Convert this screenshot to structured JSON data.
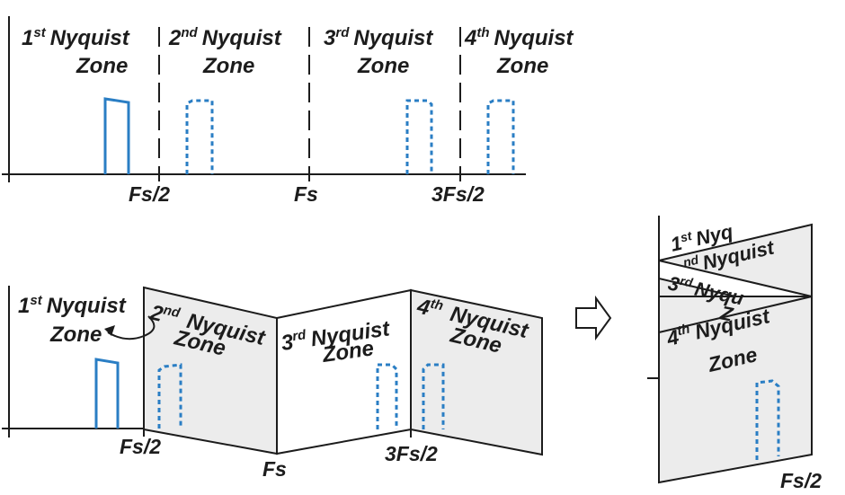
{
  "top_panel": {
    "zones": [
      {
        "sup_num": "1",
        "sup": "st",
        "word": "Nyquist",
        "line2": "Zone"
      },
      {
        "sup_num": "2",
        "sup": "nd",
        "word": "Nyquist",
        "line2": "Zone"
      },
      {
        "sup_num": "3",
        "sup": "rd",
        "word": "Nyquist",
        "line2": "Zone"
      },
      {
        "sup_num": "4",
        "sup": "th",
        "word": "Nyquist",
        "line2": "Zone"
      }
    ],
    "ticks": [
      "Fs/2",
      "Fs",
      "3Fs/2"
    ]
  },
  "bottom_panel": {
    "zones": [
      {
        "sup_num": "1",
        "sup": "st",
        "word": "Nyquist",
        "line2": "Zone"
      },
      {
        "sup_num": "2",
        "sup": "nd",
        "word": "Nyquist",
        "line2": "Zone"
      },
      {
        "sup_num": "3",
        "sup": "rd",
        "word": "Nyquist",
        "line2": "Zone"
      },
      {
        "sup_num": "4",
        "sup": "th",
        "word": "Nyquist",
        "line2": "Zone"
      }
    ],
    "ticks": [
      "Fs/2",
      "Fs",
      "3Fs/2"
    ]
  },
  "folded_panel": {
    "zones": [
      {
        "sup_num": "1",
        "sup": "st",
        "word": "Nyq",
        "line2": ""
      },
      {
        "sup_num": "",
        "sup": "nd",
        "word": "Nyquist",
        "line2": ""
      },
      {
        "sup_num": "3",
        "sup": "rd",
        "word": "Nyqu",
        "line2": "Z"
      },
      {
        "sup_num": "4",
        "sup": "th",
        "word": "Nyquist",
        "line2": "Zone"
      }
    ],
    "tick": "Fs/2"
  },
  "arrow_icon": "hollow-right-arrow-icon"
}
